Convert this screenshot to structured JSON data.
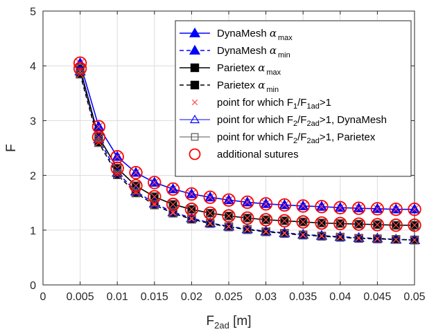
{
  "chart_data": {
    "type": "line",
    "xlabel": "F",
    "xlabel_sub": "2ad",
    "xlabel_unit": " [m]",
    "ylabel": "F",
    "xlim": [
      0,
      0.05
    ],
    "ylim": [
      0,
      5
    ],
    "x_ticks": [
      0,
      0.005,
      0.01,
      0.015,
      0.02,
      0.025,
      0.03,
      0.035,
      0.04,
      0.045,
      0.05
    ],
    "x_tick_labels": [
      "0",
      "0.005",
      "0.01",
      "0.015",
      "0.02",
      "0.025",
      "0.03",
      "0.035",
      "0.04",
      "0.045",
      "0.05"
    ],
    "y_ticks": [
      0,
      1,
      2,
      3,
      4,
      5
    ],
    "y_tick_labels": [
      "0",
      "1",
      "2",
      "3",
      "4",
      "5"
    ],
    "grid": true,
    "legend_position": "top-right",
    "x": [
      0.005,
      0.0075,
      0.01,
      0.0125,
      0.015,
      0.0175,
      0.02,
      0.0225,
      0.025,
      0.0275,
      0.03,
      0.0325,
      0.035,
      0.0375,
      0.04,
      0.0425,
      0.045,
      0.0475,
      0.05
    ],
    "series": [
      {
        "name": "DynaMesh α max",
        "legend_main": "DynaMesh ",
        "legend_greek": "α",
        "legend_sub": "max",
        "color": "#0000ff",
        "line": "solid",
        "marker": "triangle-filled",
        "values": [
          4.05,
          2.89,
          2.34,
          2.05,
          1.87,
          1.75,
          1.66,
          1.6,
          1.55,
          1.51,
          1.48,
          1.46,
          1.44,
          1.43,
          1.41,
          1.4,
          1.39,
          1.38,
          1.38
        ]
      },
      {
        "name": "DynaMesh α min",
        "legend_main": "DynaMesh ",
        "legend_greek": "α",
        "legend_sub": "min",
        "color": "#0000ff",
        "line": "dashed",
        "marker": "triangle-filled",
        "values": [
          3.9,
          2.66,
          2.05,
          1.71,
          1.49,
          1.33,
          1.22,
          1.13,
          1.07,
          1.02,
          0.98,
          0.95,
          0.92,
          0.9,
          0.88,
          0.86,
          0.85,
          0.83,
          0.82
        ]
      },
      {
        "name": "Parietex α max",
        "legend_main": "Parietex ",
        "legend_greek": "α",
        "legend_sub": "max",
        "color": "#000000",
        "line": "solid",
        "marker": "square-filled",
        "values": [
          3.95,
          2.7,
          2.13,
          1.81,
          1.61,
          1.47,
          1.38,
          1.31,
          1.26,
          1.22,
          1.19,
          1.17,
          1.15,
          1.13,
          1.12,
          1.11,
          1.1,
          1.09,
          1.09
        ]
      },
      {
        "name": "Parietex α min",
        "legend_main": "Parietex ",
        "legend_greek": "α",
        "legend_sub": "min",
        "color": "#000000",
        "line": "dashed",
        "marker": "square-filled",
        "values": [
          3.85,
          2.6,
          2.01,
          1.68,
          1.46,
          1.31,
          1.2,
          1.12,
          1.06,
          1.01,
          0.97,
          0.94,
          0.91,
          0.89,
          0.87,
          0.85,
          0.84,
          0.83,
          0.82
        ]
      }
    ],
    "overlay_markers": [
      {
        "name": "point for which F1/F1ad>1",
        "legend_parts": [
          [
            "point for which F",
            ""
          ],
          [
            "1",
            "sub"
          ],
          [
            "/F",
            ""
          ],
          [
            "1ad",
            "sub"
          ],
          [
            ">1",
            ""
          ]
        ],
        "color": "#ff4d4d",
        "marker": "x",
        "applies_to": [
          "DynaMesh α max",
          "DynaMesh α min",
          "Parietex α max",
          "Parietex α min"
        ]
      },
      {
        "name": "point for which F2/F2ad>1, DynaMesh",
        "legend_parts": [
          [
            "point for which F",
            ""
          ],
          [
            "2",
            "sub"
          ],
          [
            "/F",
            ""
          ],
          [
            "2ad",
            "sub"
          ],
          [
            ">1, DynaMesh",
            ""
          ]
        ],
        "color": "#0000ff",
        "marker": "triangle-open",
        "line": "solid",
        "applies_to": [
          "DynaMesh α max",
          "DynaMesh α min"
        ]
      },
      {
        "name": "point for which F2/F2ad>1, Parietex",
        "legend_parts": [
          [
            "point for which F",
            ""
          ],
          [
            "2",
            "sub"
          ],
          [
            "/F",
            ""
          ],
          [
            "2ad",
            "sub"
          ],
          [
            ">1, Parietex",
            ""
          ]
        ],
        "color": "#555555",
        "marker": "square-open",
        "line": "solid",
        "applies_to": [
          "Parietex α max",
          "Parietex α min"
        ]
      },
      {
        "name": "additional sutures",
        "legend_parts": [
          [
            "additional sutures",
            ""
          ]
        ],
        "color": "#ff0000",
        "marker": "circle-open",
        "applies_to": [
          "DynaMesh α max",
          "Parietex α max"
        ]
      }
    ]
  }
}
